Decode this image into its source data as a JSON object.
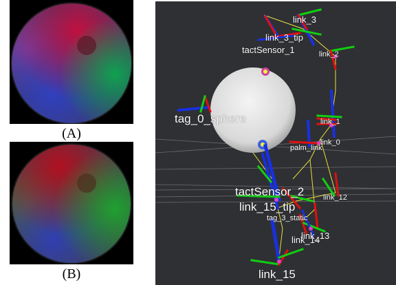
{
  "panels": [
    {
      "caption": "(A)"
    },
    {
      "caption": "(B)"
    }
  ],
  "viewer": {
    "labels": {
      "link_3": "link_3",
      "link_3_tip": "link_3_tip",
      "tactSensor_1": "tactSensor_1",
      "link_2": "link_2",
      "tag_0_sphere": "tag_0_sphere",
      "link_1": "link_1",
      "palm_link": "palm_link",
      "link_0": "link_0",
      "tactSensor_2": "tactSensor_2",
      "link_12": "link_12",
      "link_15_tip": "link_15_tip",
      "tag_3_static": "tag_3_static",
      "link_14": "link_14",
      "link_13": "link_13",
      "link_15": "link_15"
    }
  },
  "colors": {
    "viewer_bg": "#2f3033",
    "axis_x": "#e01010",
    "axis_y": "#10d010",
    "axis_z": "#1830e0",
    "link_line": "#e8e040"
  }
}
